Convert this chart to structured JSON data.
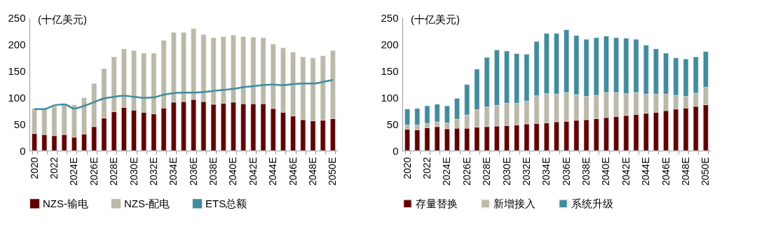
{
  "chart_data": [
    {
      "type": "bar",
      "stacked": true,
      "ylabel": "(十亿美元)",
      "legend": "bottom",
      "grid": false,
      "categories": [
        "2020",
        null,
        "2022",
        null,
        "2024E",
        null,
        "2026E",
        null,
        "2028E",
        null,
        "2030E",
        null,
        "2032E",
        null,
        "2034E",
        null,
        "2036E",
        null,
        "2038E",
        null,
        "2040E",
        null,
        "2042E",
        null,
        "2044E",
        null,
        "2046E",
        null,
        "2048E",
        null,
        "2050E"
      ],
      "ylim": [
        0,
        250
      ],
      "yticks": [
        0,
        50,
        100,
        150,
        200,
        250
      ],
      "series": [
        {
          "name": "NZS-输电",
          "color": "#660000",
          "values": [
            32,
            30,
            28,
            30,
            25,
            31,
            45,
            61,
            73,
            81,
            76,
            72,
            69,
            80,
            91,
            92,
            96,
            92,
            87,
            89,
            91,
            88,
            88,
            88,
            79,
            72,
            65,
            58,
            56,
            57,
            60
          ]
        },
        {
          "name": "NZS-配电",
          "color": "#bbb9a7",
          "values": [
            47,
            49,
            55,
            56,
            61,
            68,
            81,
            93,
            103,
            110,
            112,
            111,
            114,
            127,
            131,
            130,
            133,
            126,
            125,
            125,
            126,
            126,
            125,
            124,
            121,
            121,
            120,
            118,
            118,
            121,
            128
          ]
        },
        {
          "name": "ETS总额",
          "color": "#3e8ca0",
          "type": "line",
          "values": [
            78,
            78,
            85,
            87,
            79,
            84,
            91,
            98,
            101,
            103,
            101,
            99,
            100,
            105,
            108,
            109,
            109,
            110,
            112,
            114,
            116,
            119,
            121,
            123,
            124,
            123,
            125,
            126,
            126,
            129,
            133
          ]
        }
      ]
    },
    {
      "type": "bar",
      "stacked": true,
      "ylabel": "(十亿美元)",
      "legend": "bottom",
      "grid": false,
      "categories": [
        "2020",
        null,
        "2022",
        null,
        "2024E",
        null,
        "2026E",
        null,
        "2028E",
        null,
        "2030E",
        null,
        "2032E",
        null,
        "2034E",
        null,
        "2036E",
        null,
        "2038E",
        null,
        "2040E",
        null,
        "2042E",
        null,
        "2044E",
        null,
        "2046E",
        null,
        "2048E",
        null,
        "2050E"
      ],
      "ylim": [
        0,
        250
      ],
      "yticks": [
        0,
        50,
        100,
        150,
        200,
        250
      ],
      "series": [
        {
          "name": "存量替换",
          "color": "#660000",
          "values": [
            40,
            39,
            43,
            45,
            41,
            42,
            42,
            44,
            45,
            46,
            47,
            48,
            50,
            51,
            52,
            54,
            55,
            57,
            58,
            60,
            62,
            64,
            66,
            68,
            70,
            72,
            75,
            78,
            80,
            83,
            86
          ]
        },
        {
          "name": "新增接入",
          "color": "#bbb9a7",
          "values": [
            8,
            9,
            8,
            9,
            11,
            17,
            25,
            33,
            37,
            39,
            42,
            41,
            43,
            52,
            55,
            52,
            54,
            48,
            44,
            44,
            47,
            45,
            41,
            41,
            36,
            34,
            31,
            26,
            22,
            25,
            33
          ]
        },
        {
          "name": "系统升级",
          "color": "#3e8ca0",
          "values": [
            30,
            31,
            33,
            33,
            32,
            39,
            57,
            76,
            93,
            104,
            98,
            93,
            88,
            102,
            113,
            114,
            118,
            111,
            107,
            108,
            106,
            103,
            104,
            100,
            92,
            85,
            77,
            70,
            70,
            68,
            67
          ]
        }
      ]
    }
  ]
}
